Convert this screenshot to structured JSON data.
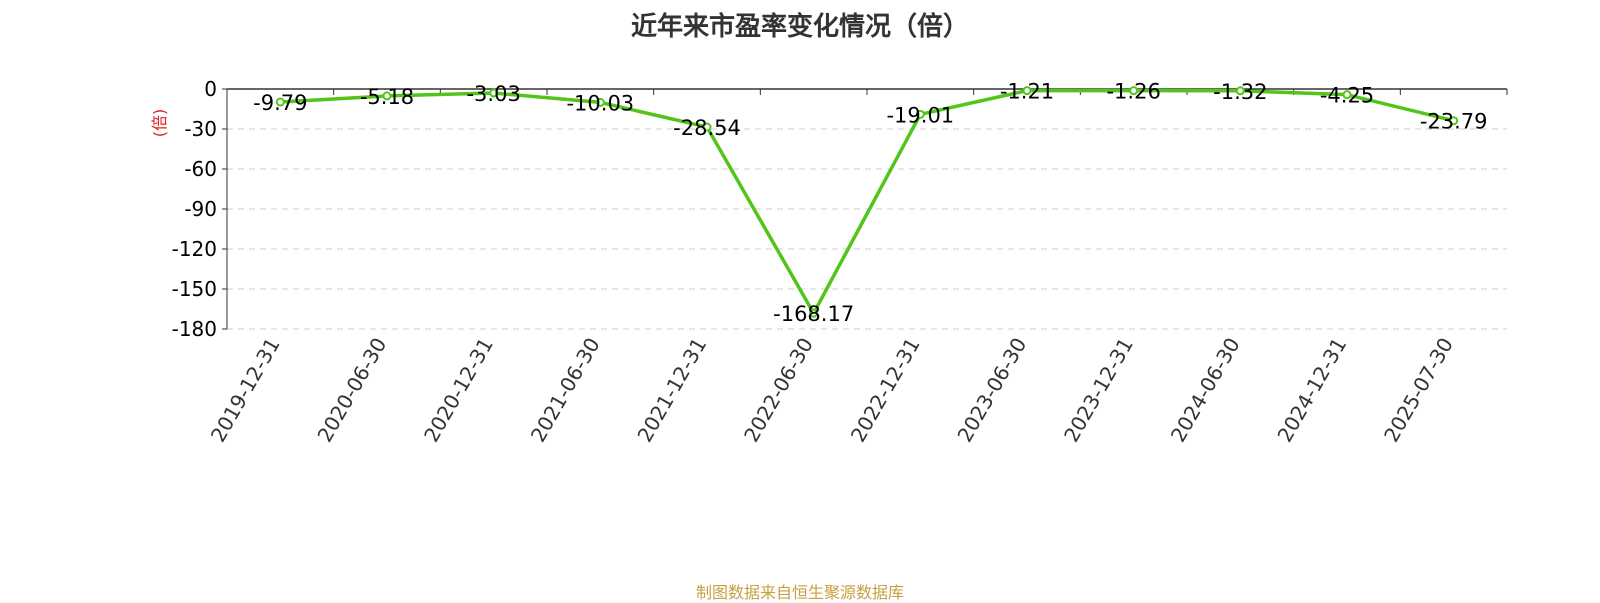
{
  "chart_data": {
    "type": "line",
    "title": "近年来市盈率变化情况（倍）",
    "ylabel": "(倍)",
    "xlabel": "",
    "categories": [
      "2019-12-31",
      "2020-06-30",
      "2020-12-31",
      "2021-06-30",
      "2021-12-31",
      "2022-06-30",
      "2022-12-31",
      "2023-06-30",
      "2023-12-31",
      "2024-06-30",
      "2024-12-31",
      "2025-07-30"
    ],
    "series": [
      {
        "values": [
          -9.79,
          -5.18,
          -3.03,
          -10.03,
          -28.54,
          -168.17,
          -19.01,
          -1.21,
          -1.26,
          -1.32,
          -4.25,
          -23.79
        ],
        "labels": [
          "-9.79",
          "-5.18",
          "-3.03",
          "-10.03",
          "-28.54",
          "-168.17",
          "-19.01",
          "-1.21",
          "-1.26",
          "-1.32",
          "-4.25",
          "-23.79"
        ]
      }
    ],
    "ylim": [
      -180,
      0
    ],
    "yticks": [
      "0",
      "-30",
      "-60",
      "-90",
      "-120",
      "-150",
      "-180"
    ],
    "ytick_values": [
      0,
      -30,
      -60,
      -90,
      -120,
      -150,
      -180
    ],
    "grid": true,
    "legend": "none",
    "colors": {
      "line": "#52c41a",
      "grid": "#cccccc",
      "axis": "#333333",
      "ylabel": "#e02020"
    }
  },
  "source": "制图数据来自恒生聚源数据库"
}
